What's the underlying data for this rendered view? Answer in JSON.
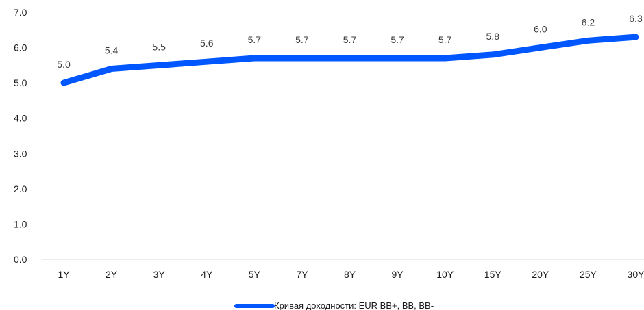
{
  "chart_data": {
    "type": "line",
    "categories": [
      "1Y",
      "2Y",
      "3Y",
      "4Y",
      "5Y",
      "7Y",
      "8Y",
      "9Y",
      "10Y",
      "15Y",
      "20Y",
      "25Y",
      "30Y"
    ],
    "series": [
      {
        "name": "Кривая доходности: EUR BB+, BB, BB-",
        "values": [
          5.0,
          5.4,
          5.5,
          5.6,
          5.7,
          5.7,
          5.7,
          5.7,
          5.7,
          5.8,
          6.0,
          6.2,
          6.3
        ],
        "data_labels": [
          "5.0",
          "5.4",
          "5.5",
          "5.6",
          "5.7",
          "5.7",
          "5.7",
          "5.7",
          "5.7",
          "5.8",
          "6.0",
          "6.2",
          "6.3"
        ],
        "color": "#0057FF"
      }
    ],
    "ylim": [
      0,
      7
    ],
    "yticks": [
      0,
      1,
      2,
      3,
      4,
      5,
      6,
      7
    ],
    "ytick_labels": [
      "0.0",
      "1.0",
      "2.0",
      "3.0",
      "4.0",
      "5.0",
      "6.0",
      "7.0"
    ],
    "title": "",
    "xlabel": "",
    "ylabel": "",
    "grid": false,
    "legend_position": "bottom-center",
    "axis_color": "#D9D9D9"
  }
}
